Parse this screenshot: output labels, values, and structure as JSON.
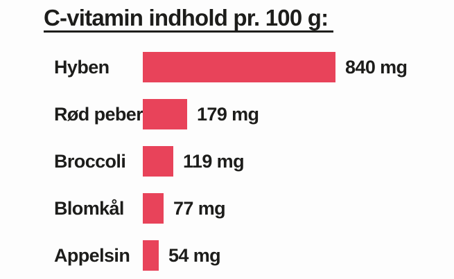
{
  "page": {
    "background_color": "#fdfdfd",
    "text_color": "#1d1d1b"
  },
  "header": {
    "title": "C-vitamin indhold pr. 100 g:"
  },
  "chart_data": {
    "type": "bar",
    "orientation": "horizontal",
    "title": "C-vitamin indhold pr. 100 g:",
    "categories": [
      "Hyben",
      "Rød peber",
      "Broccoli",
      "Blomkål",
      "Appelsin"
    ],
    "values": [
      840,
      179,
      119,
      77,
      54
    ],
    "unit": "mg",
    "value_labels": [
      "840 mg",
      "179 mg",
      "119 mg",
      "77 mg",
      "54 mg"
    ],
    "xlabel": "",
    "ylabel": "",
    "xlim": [
      0,
      840
    ],
    "grid": false,
    "legend": false,
    "bar_color": "#e8435a"
  }
}
